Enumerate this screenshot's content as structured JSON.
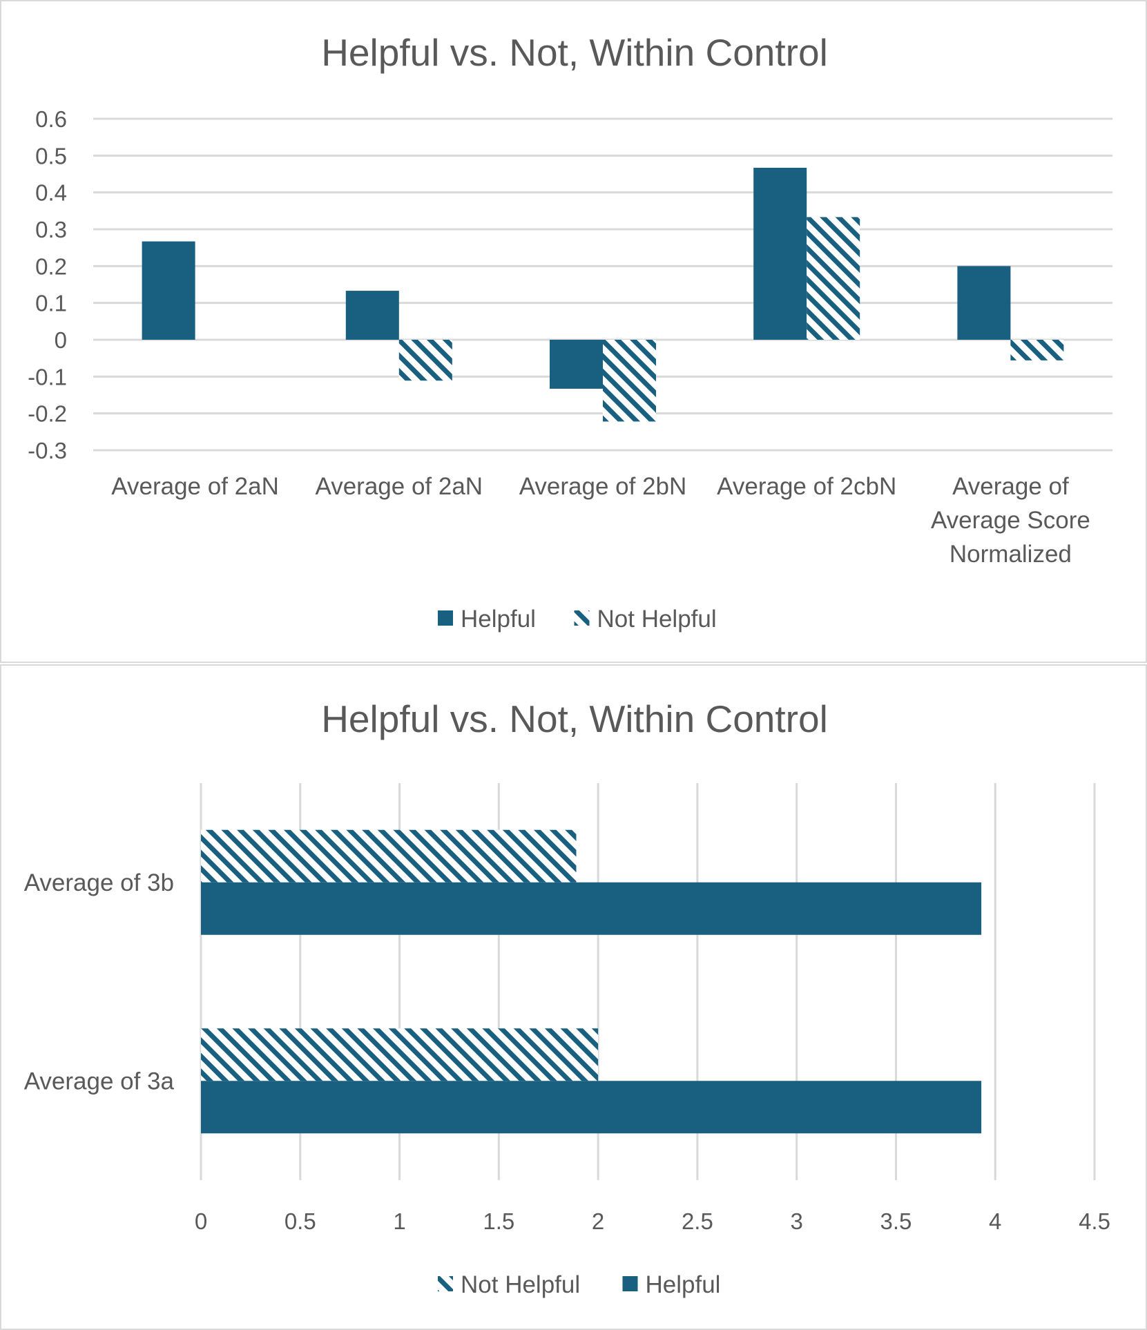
{
  "colors": {
    "series": "#185f80",
    "grid": "#d9d9d9",
    "text": "#595959"
  },
  "chart_data": [
    {
      "type": "bar",
      "orientation": "vertical",
      "title": "Helpful vs. Not, Within Control",
      "categories": [
        "Average of 2aN",
        "Average of 2aN",
        "Average of 2bN",
        "Average of 2cbN",
        [
          "Average of",
          "Average Score",
          "Normalized"
        ]
      ],
      "series": [
        {
          "name": "Helpful",
          "pattern": "solid",
          "values": [
            0.267,
            0.133,
            -0.133,
            0.467,
            0.2
          ]
        },
        {
          "name": "Not Helpful",
          "pattern": "hatched",
          "values": [
            0,
            -0.111,
            -0.222,
            0.333,
            -0.056
          ]
        }
      ],
      "ylim": [
        -0.3,
        0.6
      ],
      "yticks": [
        "0.6",
        "0.5",
        "0.4",
        "0.3",
        "0.2",
        "0.1",
        "0",
        "-0.1",
        "-0.2",
        "-0.3"
      ],
      "ytick_values": [
        0.6,
        0.5,
        0.4,
        0.3,
        0.2,
        0.1,
        0,
        -0.1,
        -0.2,
        -0.3
      ],
      "grid": true,
      "legend": "bottom",
      "legend_order": [
        "Helpful",
        "Not Helpful"
      ]
    },
    {
      "type": "bar",
      "orientation": "horizontal",
      "title": "Helpful vs. Not, Within Control",
      "categories": [
        "Average of 3b",
        "Average of 3a"
      ],
      "series": [
        {
          "name": "Not Helpful",
          "pattern": "hatched",
          "values": [
            1.89,
            2.0
          ]
        },
        {
          "name": "Helpful",
          "pattern": "solid",
          "values": [
            3.93,
            3.93
          ]
        }
      ],
      "xlim": [
        0,
        4.5
      ],
      "xticks": [
        "0",
        "0.5",
        "1",
        "1.5",
        "2",
        "2.5",
        "3",
        "3.5",
        "4",
        "4.5"
      ],
      "xtick_values": [
        0,
        0.5,
        1,
        1.5,
        2,
        2.5,
        3,
        3.5,
        4,
        4.5
      ],
      "grid": true,
      "legend": "bottom",
      "legend_order": [
        "Not Helpful",
        "Helpful"
      ]
    }
  ]
}
